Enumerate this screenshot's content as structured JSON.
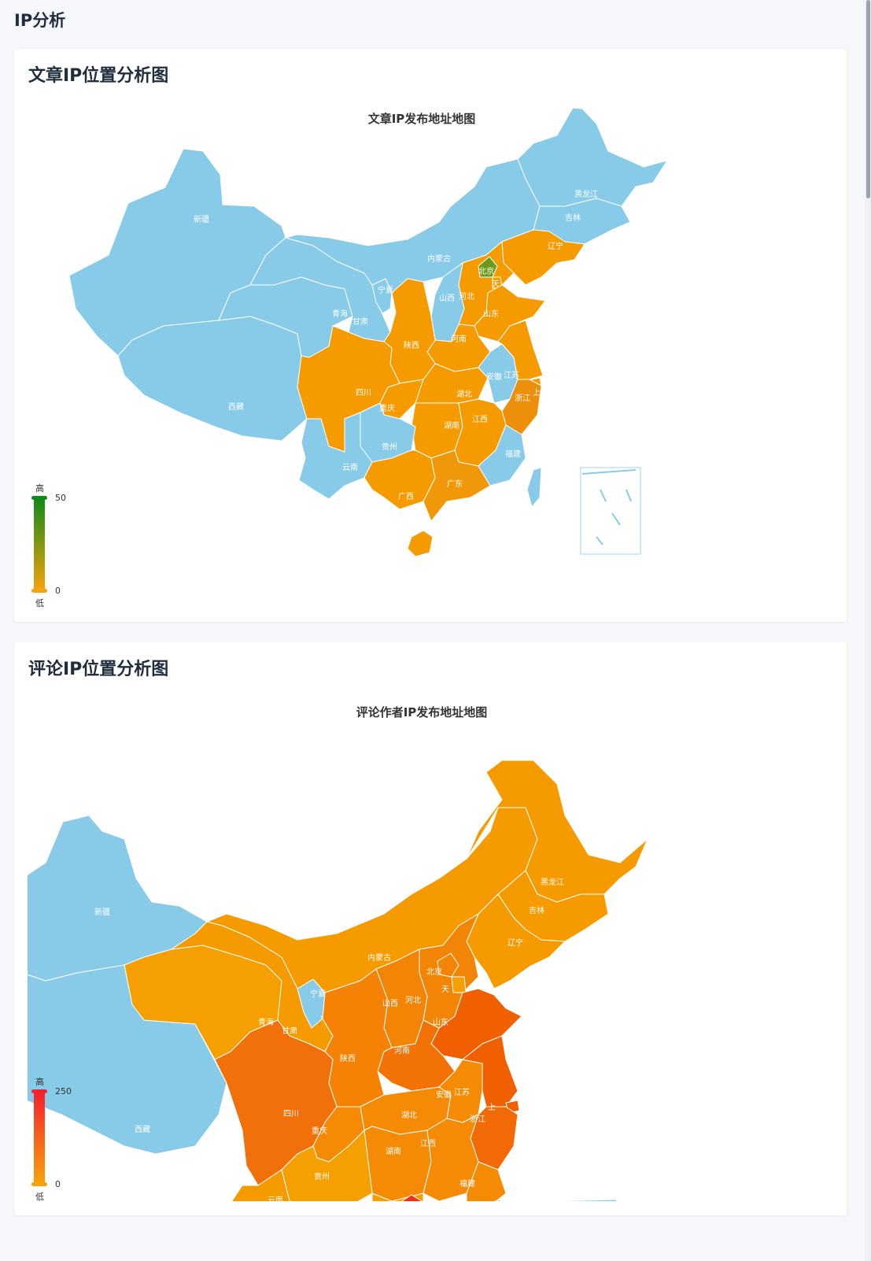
{
  "page": {
    "title": "IP分析"
  },
  "article_card": {
    "title": "文章IP位置分析图",
    "map_title": "文章IP发布地址地图",
    "legend": {
      "high": "高",
      "low": "低",
      "max": "50",
      "min": "0",
      "color_high": "#138a1a",
      "color_low": "#f7a20a"
    }
  },
  "comment_card": {
    "title": "评论IP位置分析图",
    "map_title": "评论作者IP发布地址地图",
    "legend": {
      "high": "高",
      "low": "低",
      "max": "250",
      "min": "0",
      "color_high": "#f5222d",
      "color_low": "#f7a20a"
    }
  },
  "colors": {
    "no_data": "#87cbe9",
    "accent": "#f59b00"
  },
  "provinces_article": [
    "新疆",
    "西藏",
    "青海",
    "甘肃",
    "宁夏",
    "内蒙古",
    "黑龙江",
    "吉林",
    "辽宁",
    "北京",
    "天",
    "河北",
    "山西",
    "山东",
    "河南",
    "陕西",
    "四川",
    "重庆",
    "湖北",
    "安徽",
    "江苏",
    "浙江",
    "湖南",
    "江西",
    "贵州",
    "云南",
    "广西",
    "广东",
    "福建",
    "上"
  ],
  "provinces_comment": [
    "新疆",
    "西藏",
    "青海",
    "甘肃",
    "宁夏",
    "内蒙古",
    "黑龙江",
    "吉林",
    "辽宁",
    "北京",
    "天",
    "河北",
    "山西",
    "山东",
    "河南",
    "陕西",
    "四川",
    "重庆",
    "湖北",
    "安徽",
    "江苏",
    "浙江",
    "湖南",
    "江西",
    "贵州",
    "云南",
    "福建",
    "上"
  ]
}
